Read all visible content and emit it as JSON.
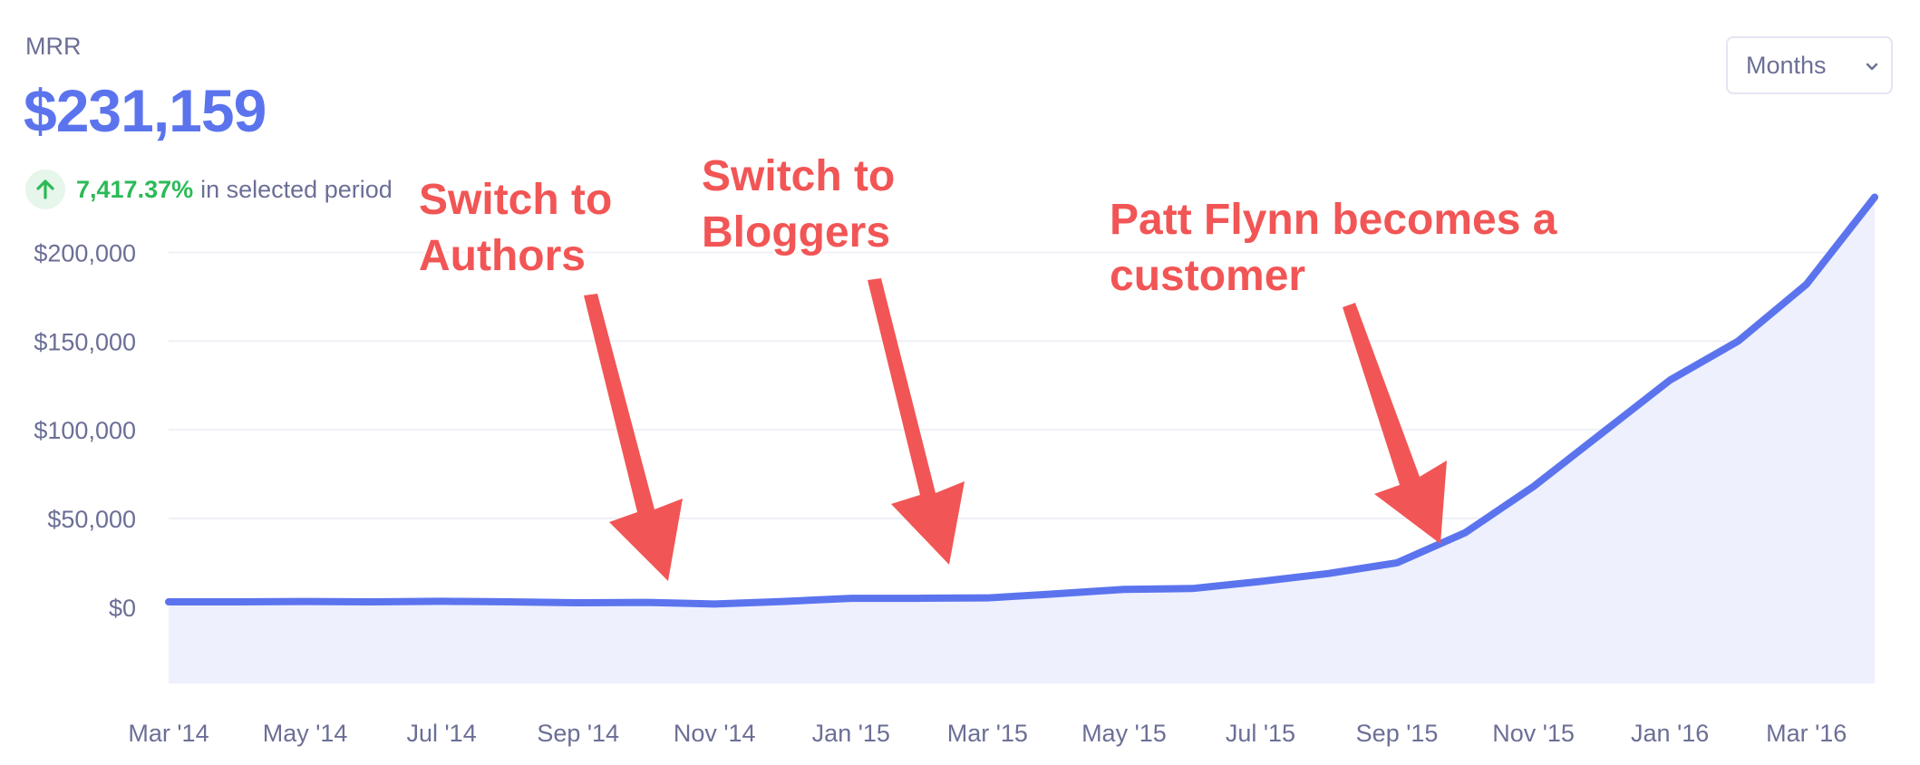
{
  "header": {
    "label": "MRR",
    "value": "$231,159",
    "change_pct": "7,417.37%",
    "change_suffix": "in selected period"
  },
  "period_select": {
    "selected": "Months"
  },
  "icons": {
    "change": "arrow-up-icon",
    "select": "chevron-down-icon"
  },
  "colors": {
    "line": "#5b74ee",
    "fill": "#eef0fd",
    "accent": "#5b74ee",
    "positive": "#2cba57",
    "annotation": "#f25555"
  },
  "annotations": [
    {
      "lines": [
        "Switch to",
        "Authors"
      ]
    },
    {
      "lines": [
        "Switch to",
        "Bloggers"
      ]
    },
    {
      "lines": [
        "Patt Flynn becomes a",
        "customer"
      ]
    }
  ],
  "chart_data": {
    "type": "area",
    "x": [
      "Mar '14",
      "Apr '14",
      "May '14",
      "Jun '14",
      "Jul '14",
      "Aug '14",
      "Sep '14",
      "Oct '14",
      "Nov '14",
      "Dec '14",
      "Jan '15",
      "Feb '15",
      "Mar '15",
      "Apr '15",
      "May '15",
      "Jun '15",
      "Jul '15",
      "Aug '15",
      "Sep '15",
      "Oct '15",
      "Nov '15",
      "Dec '15",
      "Jan '16",
      "Feb '16",
      "Mar '16",
      "Apr '16"
    ],
    "series": [
      {
        "values": [
          3000,
          3000,
          3200,
          3000,
          3300,
          3000,
          2500,
          2700,
          1800,
          3200,
          5000,
          5000,
          5200,
          7500,
          10000,
          10500,
          14500,
          19000,
          25000,
          42000,
          68000,
          98000,
          128000,
          150000,
          182000,
          231159
        ]
      }
    ],
    "x_tick_labels": [
      "Mar '14",
      "May '14",
      "Jul '14",
      "Sep '14",
      "Nov '14",
      "Jan '15",
      "Mar '15",
      "May '15",
      "Jul '15",
      "Sep '15",
      "Nov '15",
      "Jan '16",
      "Mar '16"
    ],
    "y_tick_labels": [
      "$0",
      "$50,000",
      "$100,000",
      "$150,000",
      "$200,000"
    ],
    "y_ticks": [
      0,
      50000,
      100000,
      150000,
      200000
    ],
    "ylim": [
      -43000,
      235000
    ],
    "grid": true,
    "legend": "none"
  }
}
